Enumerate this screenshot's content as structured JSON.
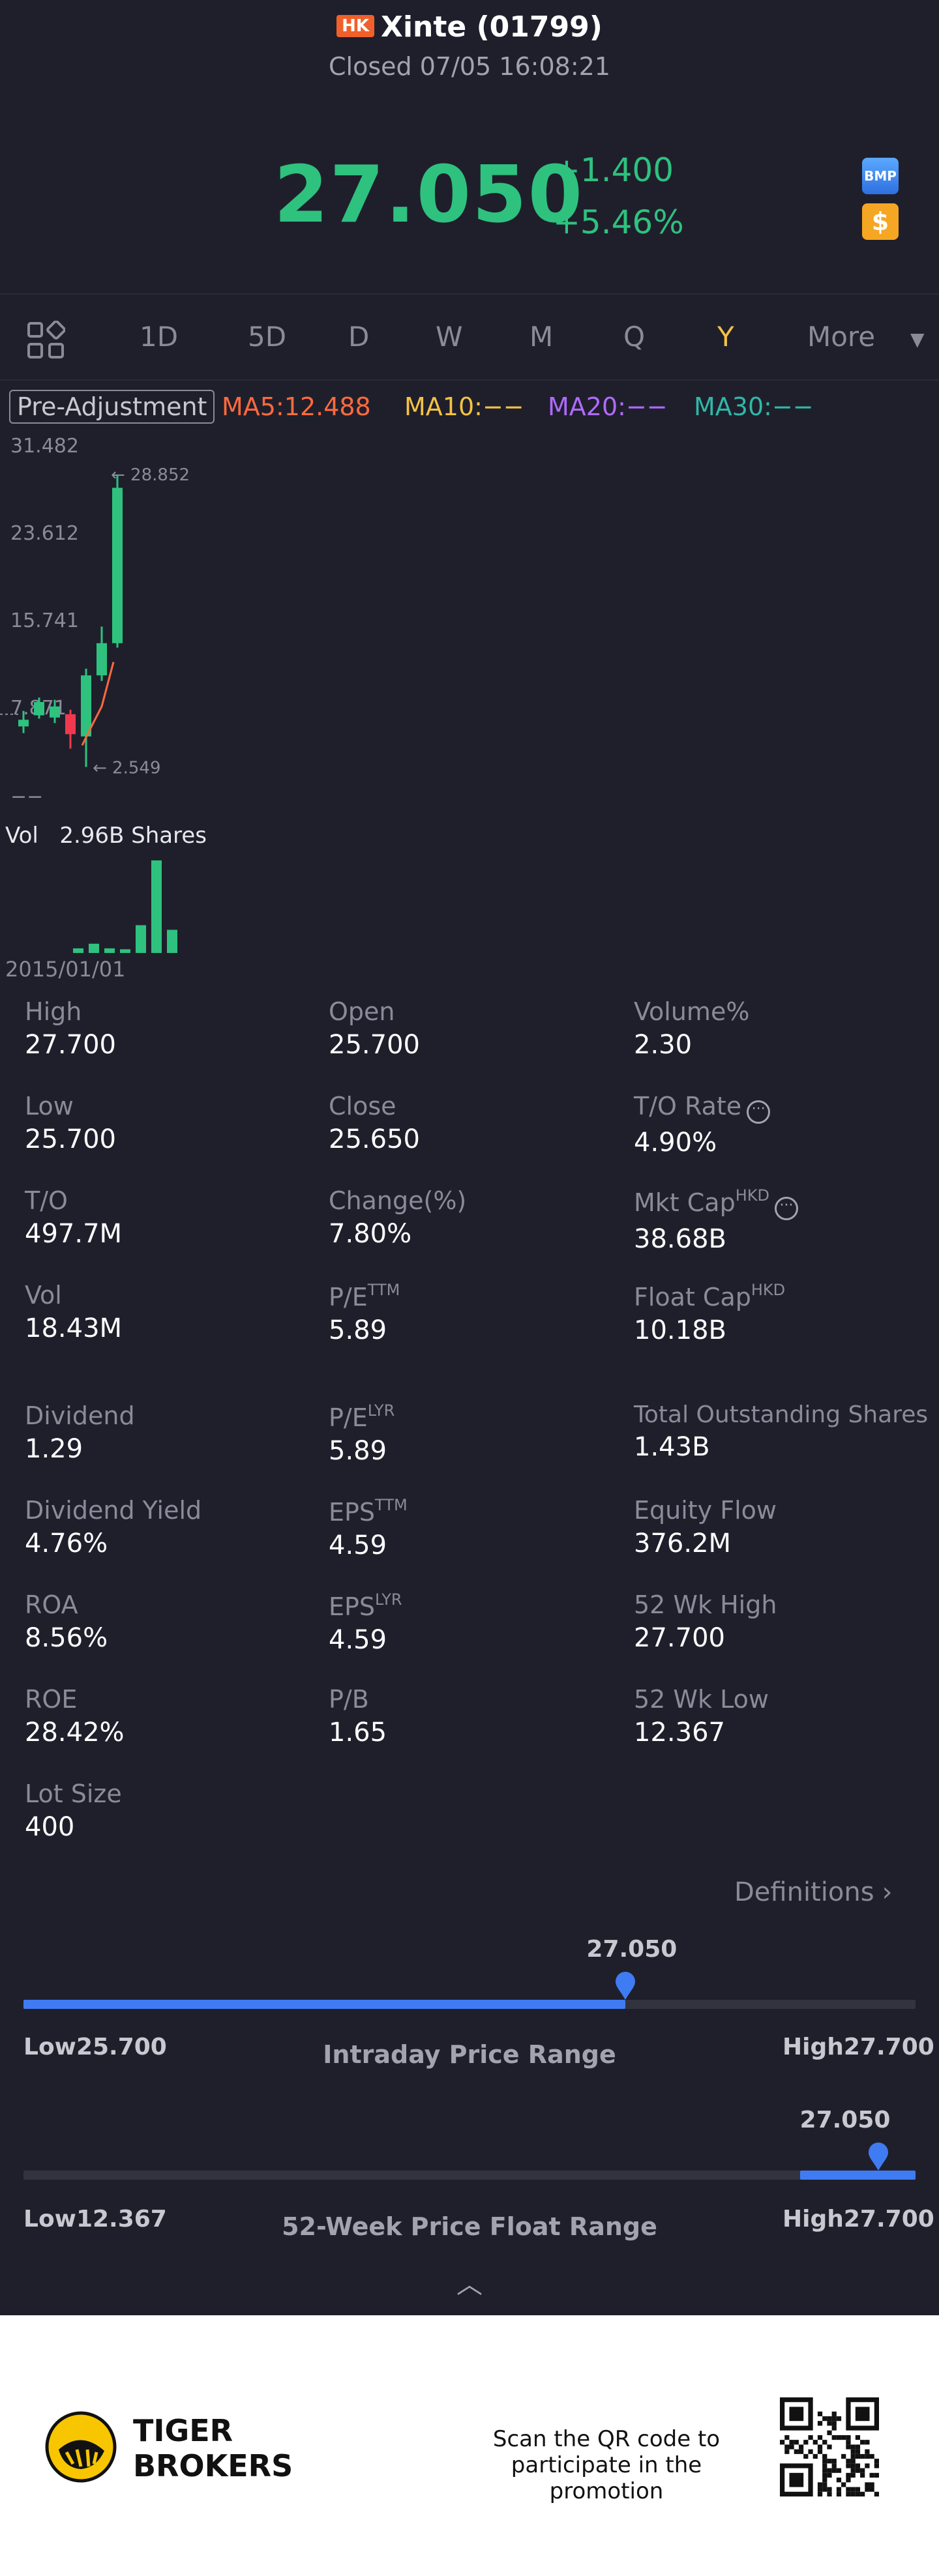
{
  "header": {
    "market_badge": "HK",
    "title": "Xinte (01799)",
    "status": "Closed 07/05 16:08:21",
    "price": "27.050",
    "change": "+1.400",
    "change_pct": "+5.46%",
    "badge_bmp": "BMP",
    "badge_dollar": "$",
    "up_color": "#2ec27e"
  },
  "tabs": {
    "items": [
      "1D",
      "5D",
      "D",
      "W",
      "M",
      "Q",
      "Y",
      "More"
    ],
    "active": "Y",
    "more_icon": "caret-down-icon",
    "grid_icon": "layout-grid-icon"
  },
  "ma": {
    "pre_adjustment": "Pre-Adjustment",
    "ma5": "MA5:12.488",
    "ma10": "MA10:−−",
    "ma20": "MA20:−−",
    "ma30": "MA30:−−"
  },
  "chart_data": {
    "type": "candlestick",
    "y_ticks": [
      "31.482",
      "23.612",
      "15.741",
      "7.871",
      "−−"
    ],
    "max_label": "28.852",
    "min_label": "2.549",
    "candles": [
      {
        "open": 6.2,
        "close": 6.8,
        "high": 7.6,
        "low": 5.6,
        "dir": "up"
      },
      {
        "open": 7.2,
        "close": 8.4,
        "high": 8.8,
        "low": 6.9,
        "dir": "up"
      },
      {
        "open": 8.0,
        "close": 7.0,
        "high": 8.6,
        "low": 6.5,
        "dir": "flat"
      },
      {
        "open": 7.3,
        "close": 5.5,
        "high": 7.7,
        "low": 4.2,
        "dir": "down"
      },
      {
        "open": 5.3,
        "close": 10.8,
        "high": 11.4,
        "low": 2.549,
        "dir": "up"
      },
      {
        "open": 10.8,
        "close": 13.7,
        "high": 15.2,
        "low": 10.3,
        "dir": "up"
      },
      {
        "open": 13.7,
        "close": 27.7,
        "high": 28.852,
        "low": 13.3,
        "dir": "up"
      }
    ],
    "volume_label": "Vol",
    "volume_value": "2.96B Shares",
    "volumes": [
      0.05,
      0.1,
      0.05,
      0.04,
      0.3,
      1.0,
      0.25
    ],
    "start_date": "2015/01/01"
  },
  "stats": {
    "high": {
      "label": "High",
      "value": "27.700"
    },
    "open": {
      "label": "Open",
      "value": "25.700"
    },
    "volume_pct": {
      "label": "Volume%",
      "value": "2.30"
    },
    "low": {
      "label": "Low",
      "value": "25.700"
    },
    "close": {
      "label": "Close",
      "value": "25.650"
    },
    "to_rate": {
      "label": "T/O Rate",
      "value": "4.90%"
    },
    "to": {
      "label": "T/O",
      "value": "497.7M"
    },
    "change_pct": {
      "label": "Change(%)",
      "value": "7.80%"
    },
    "mkt_cap": {
      "label": "Mkt Cap",
      "sup": "HKD",
      "value": "38.68B"
    },
    "vol": {
      "label": "Vol",
      "value": "18.43M"
    },
    "pe_ttm": {
      "label": "P/E",
      "sup": "TTM",
      "value": "5.89"
    },
    "float_cap": {
      "label": "Float Cap",
      "sup": "HKD",
      "value": "10.18B"
    },
    "dividend": {
      "label": "Dividend",
      "value": "1.29"
    },
    "pe_lyr": {
      "label": "P/E",
      "sup": "LYR",
      "value": "5.89"
    },
    "total_shares": {
      "label": "Total Outstanding Shares",
      "value": "1.43B"
    },
    "dividend_yield": {
      "label": "Dividend Yield",
      "value": "4.76%"
    },
    "eps_ttm": {
      "label": "EPS",
      "sup": "TTM",
      "value": "4.59"
    },
    "equity_flow": {
      "label": "Equity Flow",
      "value": "376.2M"
    },
    "roa": {
      "label": "ROA",
      "value": "8.56%"
    },
    "eps_lyr": {
      "label": "EPS",
      "sup": "LYR",
      "value": "4.59"
    },
    "wk52_high": {
      "label": "52 Wk High",
      "value": "27.700"
    },
    "roe": {
      "label": "ROE",
      "value": "28.42%"
    },
    "pb": {
      "label": "P/B",
      "value": "1.65"
    },
    "wk52_low": {
      "label": "52 Wk Low",
      "value": "12.367"
    },
    "lot_size": {
      "label": "Lot Size",
      "value": "400"
    },
    "info_icon": "info-dots-icon"
  },
  "definitions": {
    "label": "Definitions",
    "icon": "chevron-right-icon"
  },
  "intraday_range": {
    "current": "27.050",
    "low_label": "Low",
    "low": "25.700",
    "high_label": "High",
    "high": "27.700",
    "title": "Intraday Price Range",
    "position": 0.675
  },
  "week52_range": {
    "current": "27.050",
    "low_label": "Low",
    "low": "12.367",
    "high_label": "High",
    "high": "27.700",
    "title": "52-Week Price Float Range",
    "position": 0.958
  },
  "collapse_icon": "chevron-up-icon",
  "footer": {
    "brand_line1": "TIGER",
    "brand_line2": "BROKERS",
    "scan_text": "Scan the QR code to participate in the promotion",
    "logo_icon": "tiger-logo-icon",
    "qr_icon": "qr-code-icon"
  }
}
